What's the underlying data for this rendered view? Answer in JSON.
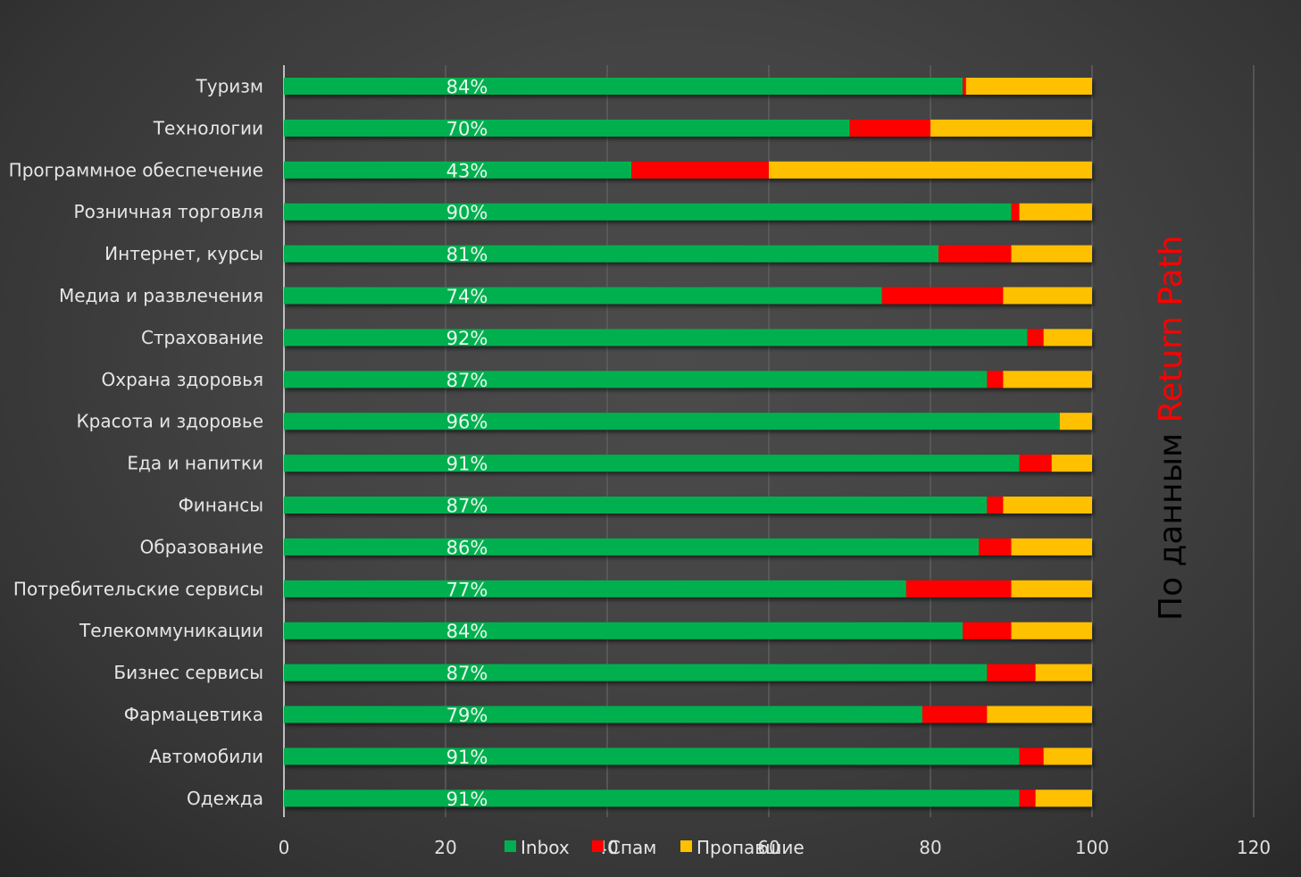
{
  "chart_data": {
    "type": "bar",
    "orientation": "horizontal",
    "stacked": true,
    "title": "",
    "xlabel": "",
    "ylabel": "",
    "xlim": [
      0,
      120
    ],
    "xticks": [
      0,
      20,
      40,
      60,
      80,
      100,
      120
    ],
    "grid": true,
    "legend_position": "bottom",
    "categories": [
      "Туризм",
      "Технологии",
      "Программное обеспечение",
      "Розничная торговля",
      "Интернет, курсы",
      "Медиа и развлечения",
      "Страхование",
      "Охрана здоровья",
      "Красота и здоровье",
      "Еда и напитки",
      "Финансы",
      "Образование",
      "Потребительские сервисы",
      "Телекоммуникации",
      "Бизнес сервисы",
      "Фармацевтика",
      "Автомобили",
      "Одежда"
    ],
    "series": [
      {
        "name": "Inbox",
        "color": "#00b050",
        "values": [
          84,
          70,
          43,
          90,
          81,
          74,
          92,
          87,
          96,
          91,
          87,
          86,
          77,
          84,
          87,
          79,
          91,
          91
        ]
      },
      {
        "name": "Спам",
        "color": "#ff0000",
        "values": [
          0.4,
          10,
          17,
          1,
          9,
          15,
          2,
          2,
          0,
          4,
          2,
          4,
          13,
          6,
          6,
          8,
          3,
          2
        ]
      },
      {
        "name": "Пропавшие",
        "color": "#ffc000",
        "values": [
          15.6,
          20,
          40,
          9,
          10,
          11,
          6,
          11,
          4,
          5,
          11,
          10,
          10,
          10,
          7,
          13,
          6,
          7
        ]
      }
    ],
    "data_labels": [
      "84%",
      "70%",
      "43%",
      "90%",
      "81%",
      "74%",
      "92%",
      "87%",
      "96%",
      "91%",
      "87%",
      "86%",
      "77%",
      "84%",
      "87%",
      "79%",
      "91%",
      "91%"
    ]
  },
  "source_note": {
    "prefix": "По данным ",
    "brand": "Return Path",
    "prefix_color": "#000000",
    "brand_color": "#ff0000"
  },
  "colors": {
    "gridline": "#5e5e5e",
    "axis": "#bfbfbf"
  }
}
